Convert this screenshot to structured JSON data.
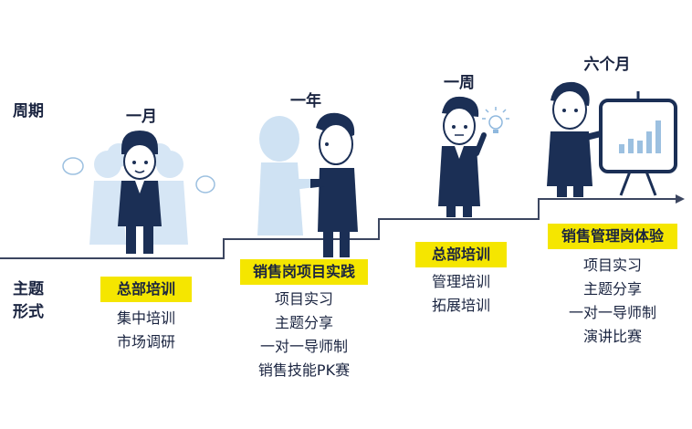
{
  "labels": {
    "cycle": "周期",
    "theme": "主题",
    "form": "形式"
  },
  "stages": [
    {
      "period": "一月",
      "title": "总部培训",
      "items": [
        "集中培训",
        "市场调研"
      ]
    },
    {
      "period": "一年",
      "title": "销售岗项目实践",
      "items": [
        "项目实习",
        "主题分享",
        "一对一导师制",
        "销售技能PK赛"
      ]
    },
    {
      "period": "一周",
      "title": "总部培训",
      "items": [
        "管理培训",
        "拓展培训"
      ]
    },
    {
      "period": "六个月",
      "title": "销售管理岗体验",
      "items": [
        "项目实习",
        "主题分享",
        "一对一导师制",
        "演讲比赛"
      ]
    }
  ],
  "colors": {
    "badge": "#f5e600",
    "navy": "#1b2f55",
    "ghost": "#cfe2f3",
    "text": "#1a2440"
  }
}
